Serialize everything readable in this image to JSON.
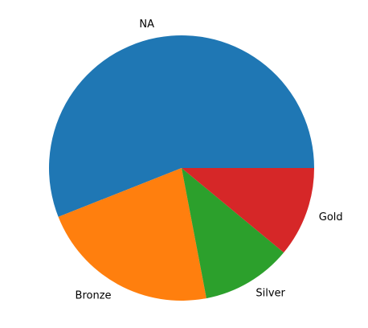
{
  "chart_data": {
    "type": "pie",
    "categories": [
      "NA",
      "Bronze",
      "Silver",
      "Gold"
    ],
    "values": [
      56,
      22,
      11,
      11
    ],
    "colors": [
      "#1f77b4",
      "#ff7f0e",
      "#2ca02c",
      "#d62728"
    ],
    "start_angle_deg": 0,
    "direction": "counterclockwise",
    "title": "",
    "legend": "none"
  }
}
